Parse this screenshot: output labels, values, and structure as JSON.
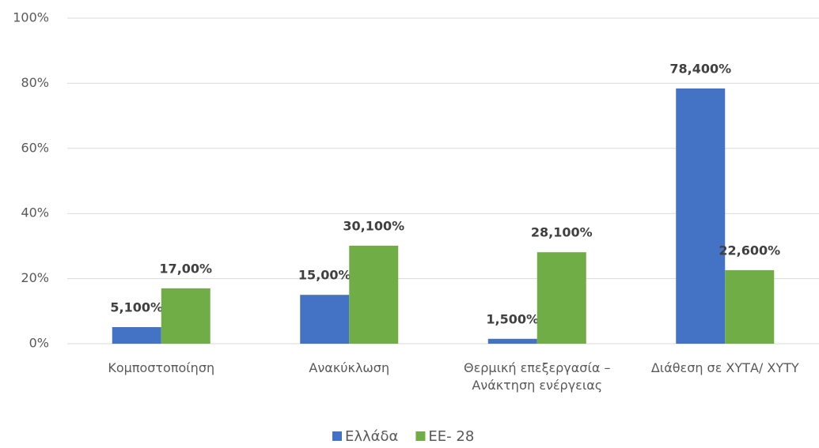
{
  "chart_data": {
    "type": "bar",
    "categories": [
      "Κομποστοποίηση",
      "Ανακύκλωση",
      "Θερμική επεξεργασία – Ανάκτηση ενέργειας",
      "Διάθεση σε ΧΥΤΑ/ ΧΥΤΥ"
    ],
    "series": [
      {
        "name": "Ελλάδα",
        "color": "#4472c4",
        "values": [
          5.1,
          15.0,
          1.5,
          78.4
        ],
        "value_labels": [
          "5,100%",
          "15,00%",
          "1,500%",
          "78,400%"
        ]
      },
      {
        "name": "ΕΕ- 28",
        "color": "#70ad47",
        "values": [
          17.0,
          30.1,
          28.1,
          22.6
        ],
        "value_labels": [
          "17,00%",
          "30,100%",
          "28,100%",
          "22,600%"
        ]
      }
    ],
    "ylim": [
      0,
      100
    ],
    "yticks": [
      {
        "value": 0,
        "label": "0%"
      },
      {
        "value": 20,
        "label": "20%"
      },
      {
        "value": 40,
        "label": "40%"
      },
      {
        "value": 60,
        "label": "60%"
      },
      {
        "value": 80,
        "label": "80%"
      },
      {
        "value": 100,
        "label": "100%"
      }
    ],
    "grid": true,
    "legend": "bottom"
  }
}
